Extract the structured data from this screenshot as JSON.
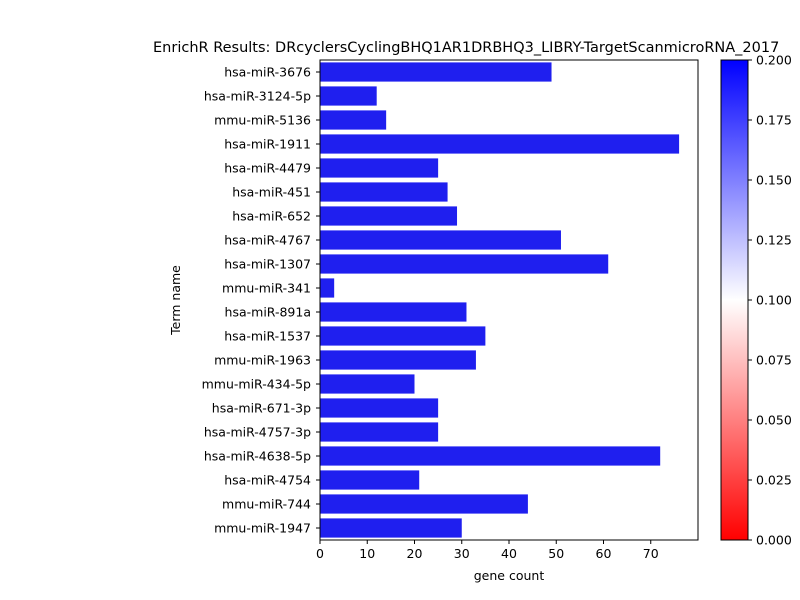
{
  "chart_data": {
    "type": "bar",
    "orientation": "horizontal",
    "title": "EnrichR Results: DRcyclersCyclingBHQ1AR1DRBHQ3_LIBRY-TargetScanmicroRNA_2017",
    "xlabel": "gene count",
    "ylabel": "Term name",
    "xlim": [
      0,
      80
    ],
    "xticks": [
      0,
      10,
      20,
      30,
      40,
      50,
      60,
      70
    ],
    "categories": [
      "hsa-miR-3676",
      "hsa-miR-3124-5p",
      "mmu-miR-5136",
      "hsa-miR-1911",
      "hsa-miR-4479",
      "hsa-miR-451",
      "hsa-miR-652",
      "hsa-miR-4767",
      "hsa-miR-1307",
      "mmu-miR-341",
      "hsa-miR-891a",
      "hsa-miR-1537",
      "mmu-miR-1963",
      "mmu-miR-434-5p",
      "hsa-miR-671-3p",
      "hsa-miR-4757-3p",
      "hsa-miR-4638-5p",
      "hsa-miR-4754",
      "mmu-miR-744",
      "mmu-miR-1947"
    ],
    "values": [
      49,
      12,
      14,
      76,
      25,
      27,
      29,
      51,
      61,
      3,
      31,
      35,
      33,
      20,
      25,
      25,
      72,
      21,
      44,
      30
    ],
    "bar_color": "#1f1fef",
    "grid": false,
    "colorbar": {
      "ticks": [
        "0.000",
        "0.025",
        "0.050",
        "0.075",
        "0.100",
        "0.125",
        "0.150",
        "0.175",
        "0.200"
      ],
      "range": [
        0.0,
        0.2
      ],
      "colors": [
        "#ff0000",
        "#ffffff",
        "#0000ff"
      ]
    }
  }
}
